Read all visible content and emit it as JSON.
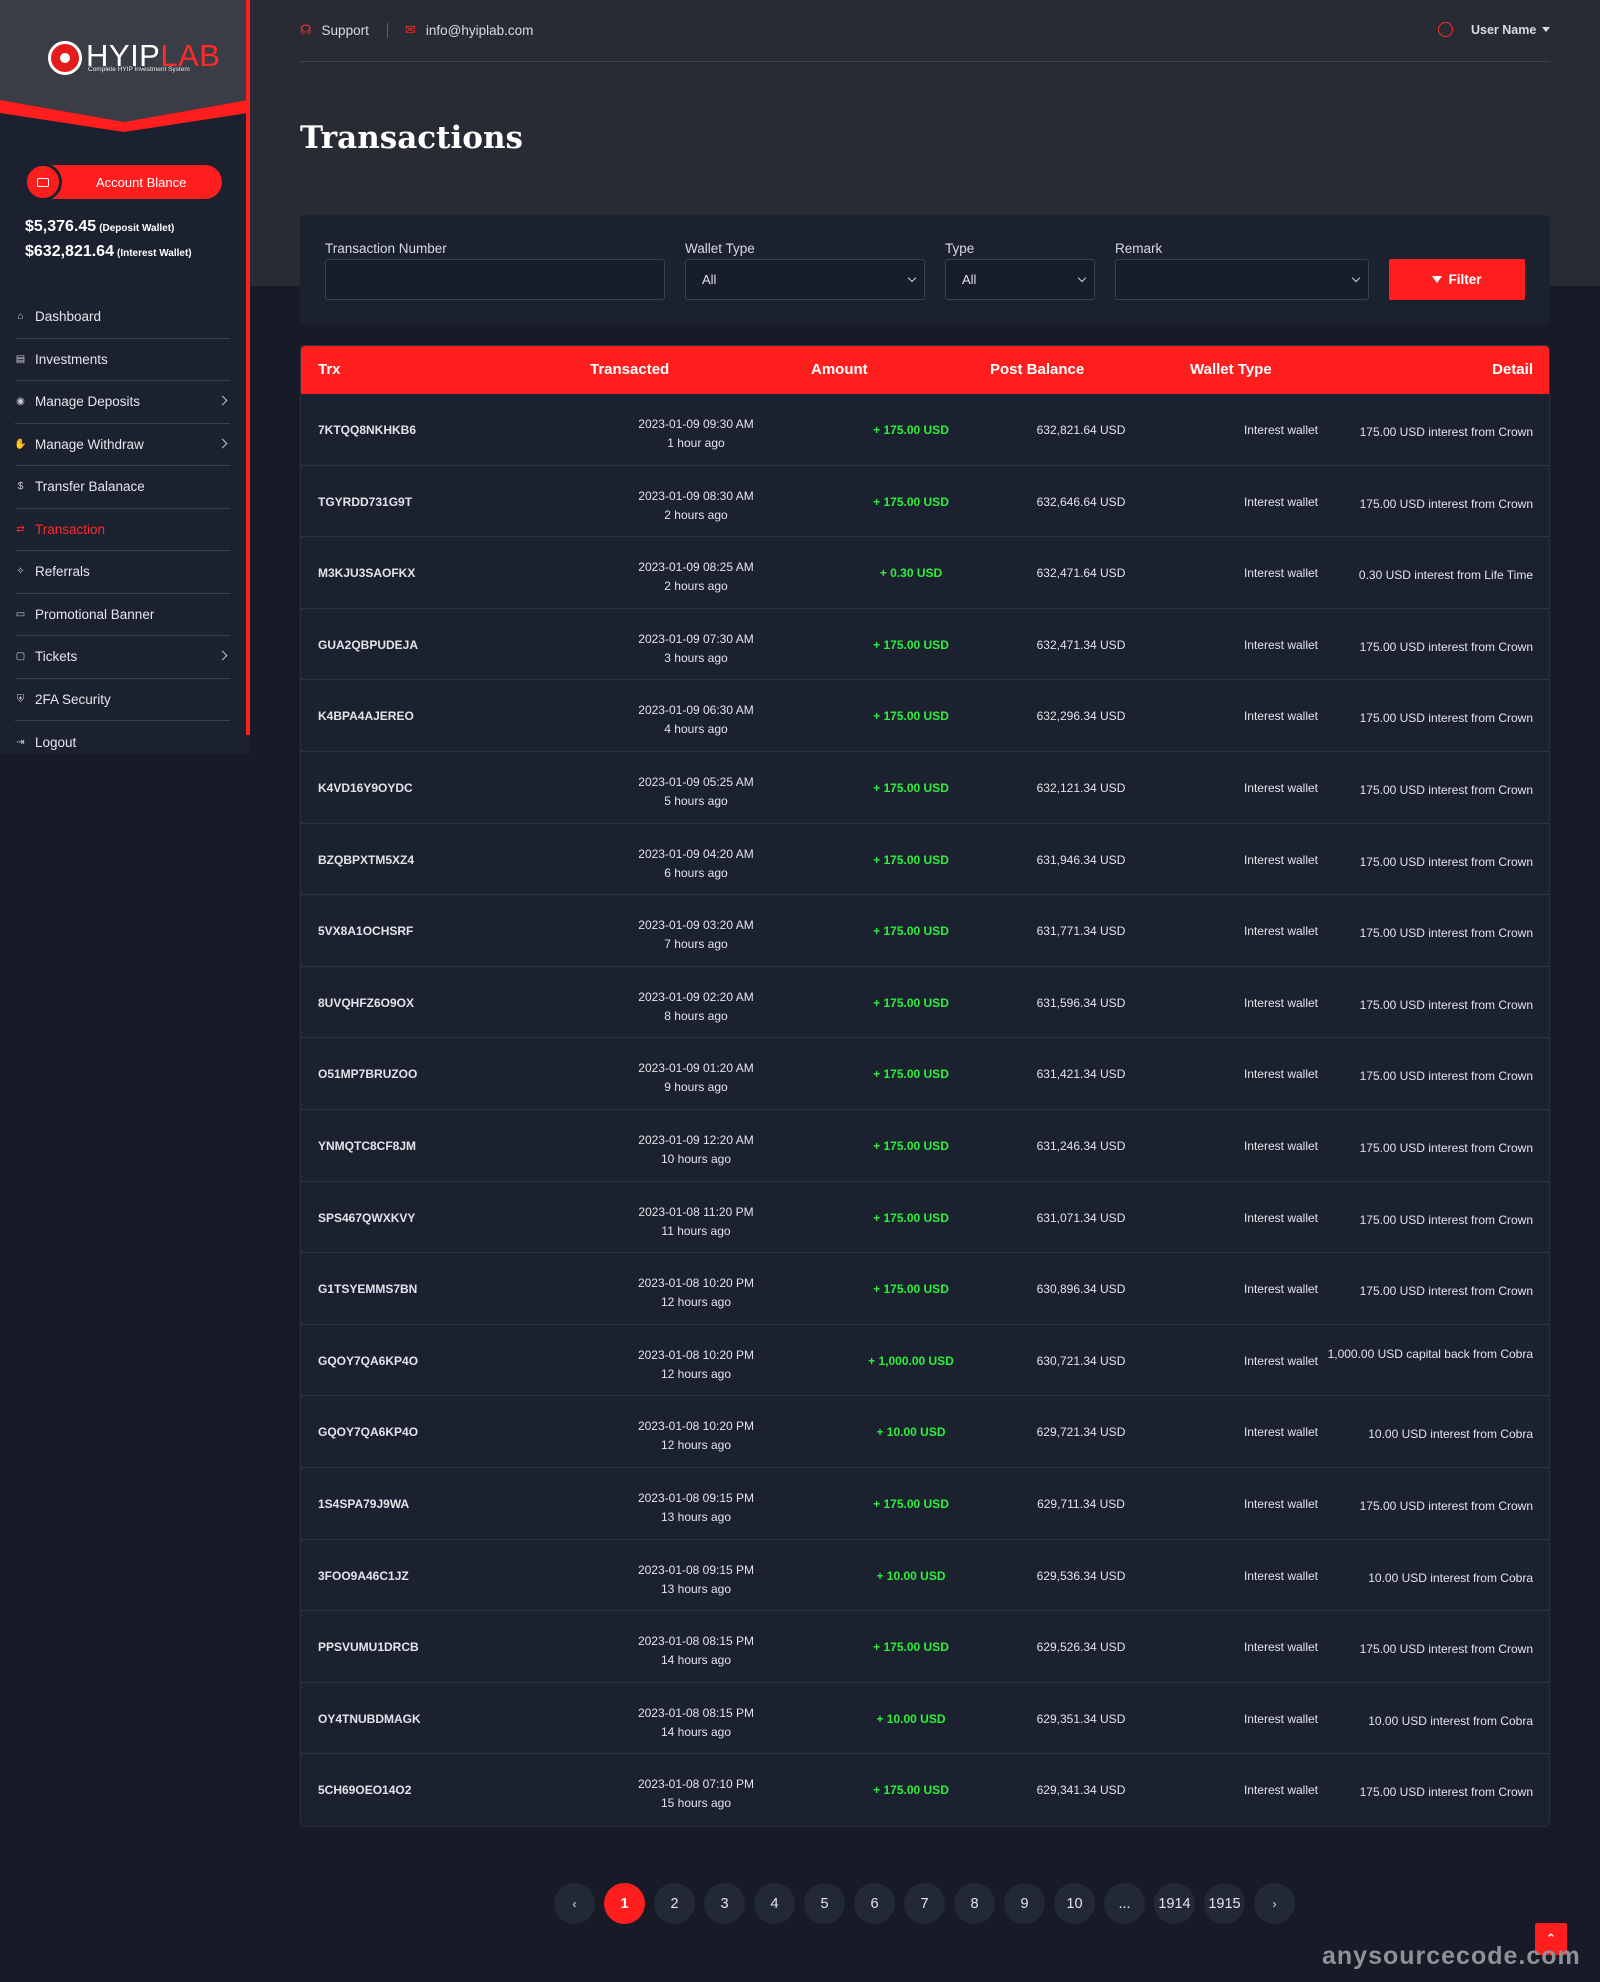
{
  "brand": {
    "name_a": "HYIP",
    "name_b": "LAB",
    "tagline": "Complete HYIP Investment System"
  },
  "header": {
    "support": "Support",
    "email": "info@hyiplab.com",
    "user": "User Name"
  },
  "sidebar": {
    "balance_button": "Account Blance",
    "deposit_amount": "$5,376.45",
    "deposit_label": "(Deposit Wallet)",
    "interest_amount": "$632,821.64",
    "interest_label": "(Interest Wallet)",
    "items": [
      {
        "label": "Dashboard",
        "icon": "home-icon",
        "chev": false
      },
      {
        "label": "Investments",
        "icon": "money-icon",
        "chev": false
      },
      {
        "label": "Manage Deposits",
        "icon": "coins-icon",
        "chev": true
      },
      {
        "label": "Manage Withdraw",
        "icon": "hand-money-icon",
        "chev": true
      },
      {
        "label": "Transfer Balanace",
        "icon": "dollar-icon",
        "chev": false
      },
      {
        "label": "Transaction",
        "icon": "exchange-icon",
        "chev": false,
        "active": true
      },
      {
        "label": "Referrals",
        "icon": "handshake-icon",
        "chev": false
      },
      {
        "label": "Promotional Banner",
        "icon": "banner-icon",
        "chev": false
      },
      {
        "label": "Tickets",
        "icon": "ticket-icon",
        "chev": true
      },
      {
        "label": "2FA Security",
        "icon": "user-shield-icon",
        "chev": false
      },
      {
        "label": "Logout",
        "icon": "logout-icon",
        "chev": false
      }
    ]
  },
  "page": {
    "title": "Transactions"
  },
  "filter": {
    "trx_label": "Transaction Number",
    "trx_value": "",
    "wallet_label": "Wallet Type",
    "wallet_value": "All",
    "type_label": "Type",
    "type_value": "All",
    "remark_label": "Remark",
    "remark_value": "",
    "button": "Filter"
  },
  "table": {
    "headers": [
      "Trx",
      "Transacted",
      "Amount",
      "Post Balance",
      "Wallet Type",
      "Detail"
    ],
    "rows": [
      [
        "7KTQQ8NKHKB6",
        "2023-01-09 09:30 AM",
        "1 hour ago",
        "+ 175.00 USD",
        "632,821.64 USD",
        "Interest wallet",
        "175.00 USD interest from Crown"
      ],
      [
        "TGYRDD731G9T",
        "2023-01-09 08:30 AM",
        "2 hours ago",
        "+ 175.00 USD",
        "632,646.64 USD",
        "Interest wallet",
        "175.00 USD interest from Crown"
      ],
      [
        "M3KJU3SAOFKX",
        "2023-01-09 08:25 AM",
        "2 hours ago",
        "+ 0.30 USD",
        "632,471.64 USD",
        "Interest wallet",
        "0.30 USD interest from Life Time"
      ],
      [
        "GUA2QBPUDEJA",
        "2023-01-09 07:30 AM",
        "3 hours ago",
        "+ 175.00 USD",
        "632,471.34 USD",
        "Interest wallet",
        "175.00 USD interest from Crown"
      ],
      [
        "K4BPA4AJEREO",
        "2023-01-09 06:30 AM",
        "4 hours ago",
        "+ 175.00 USD",
        "632,296.34 USD",
        "Interest wallet",
        "175.00 USD interest from Crown"
      ],
      [
        "K4VD16Y9OYDC",
        "2023-01-09 05:25 AM",
        "5 hours ago",
        "+ 175.00 USD",
        "632,121.34 USD",
        "Interest wallet",
        "175.00 USD interest from Crown"
      ],
      [
        "BZQBPXTM5XZ4",
        "2023-01-09 04:20 AM",
        "6 hours ago",
        "+ 175.00 USD",
        "631,946.34 USD",
        "Interest wallet",
        "175.00 USD interest from Crown"
      ],
      [
        "5VX8A1OCHSRF",
        "2023-01-09 03:20 AM",
        "7 hours ago",
        "+ 175.00 USD",
        "631,771.34 USD",
        "Interest wallet",
        "175.00 USD interest from Crown"
      ],
      [
        "8UVQHFZ6O9OX",
        "2023-01-09 02:20 AM",
        "8 hours ago",
        "+ 175.00 USD",
        "631,596.34 USD",
        "Interest wallet",
        "175.00 USD interest from Crown"
      ],
      [
        "O51MP7BRUZOO",
        "2023-01-09 01:20 AM",
        "9 hours ago",
        "+ 175.00 USD",
        "631,421.34 USD",
        "Interest wallet",
        "175.00 USD interest from Crown"
      ],
      [
        "YNMQTC8CF8JM",
        "2023-01-09 12:20 AM",
        "10 hours ago",
        "+ 175.00 USD",
        "631,246.34 USD",
        "Interest wallet",
        "175.00 USD interest from Crown"
      ],
      [
        "SPS467QWXKVY",
        "2023-01-08 11:20 PM",
        "11 hours ago",
        "+ 175.00 USD",
        "631,071.34 USD",
        "Interest wallet",
        "175.00 USD interest from Crown"
      ],
      [
        "G1TSYEMMS7BN",
        "2023-01-08 10:20 PM",
        "12 hours ago",
        "+ 175.00 USD",
        "630,896.34 USD",
        "Interest wallet",
        "175.00 USD interest from Crown"
      ],
      [
        "GQOY7QA6KP4O",
        "2023-01-08 10:20 PM",
        "12 hours ago",
        "+ 1,000.00 USD",
        "630,721.34 USD",
        "Interest wallet",
        "1,000.00 USD capital back from Cobra"
      ],
      [
        "GQOY7QA6KP4O",
        "2023-01-08 10:20 PM",
        "12 hours ago",
        "+ 10.00 USD",
        "629,721.34 USD",
        "Interest wallet",
        "10.00 USD interest from Cobra"
      ],
      [
        "1S4SPA79J9WA",
        "2023-01-08 09:15 PM",
        "13 hours ago",
        "+ 175.00 USD",
        "629,711.34 USD",
        "Interest wallet",
        "175.00 USD interest from Crown"
      ],
      [
        "3FOO9A46C1JZ",
        "2023-01-08 09:15 PM",
        "13 hours ago",
        "+ 10.00 USD",
        "629,536.34 USD",
        "Interest wallet",
        "10.00 USD interest from Cobra"
      ],
      [
        "PPSVUMU1DRCB",
        "2023-01-08 08:15 PM",
        "14 hours ago",
        "+ 175.00 USD",
        "629,526.34 USD",
        "Interest wallet",
        "175.00 USD interest from Crown"
      ],
      [
        "OY4TNUBDMAGK",
        "2023-01-08 08:15 PM",
        "14 hours ago",
        "+ 10.00 USD",
        "629,351.34 USD",
        "Interest wallet",
        "10.00 USD interest from Cobra"
      ],
      [
        "5CH69OEO14O2",
        "2023-01-08 07:10 PM",
        "15 hours ago",
        "+ 175.00 USD",
        "629,341.34 USD",
        "Interest wallet",
        "175.00 USD interest from Crown"
      ]
    ]
  },
  "pagination": {
    "prev": "‹",
    "next": "›",
    "pages": [
      "1",
      "2",
      "3",
      "4",
      "5",
      "6",
      "7",
      "8",
      "9",
      "10",
      "...",
      "1914",
      "1915"
    ],
    "active": "1"
  },
  "scroll_top": "⌃",
  "watermark": "anysourcecode.com",
  "colors": {
    "accent": "#ff1e1e",
    "positive": "#2df03a",
    "background": "#161b27",
    "panel": "#1c2130"
  }
}
